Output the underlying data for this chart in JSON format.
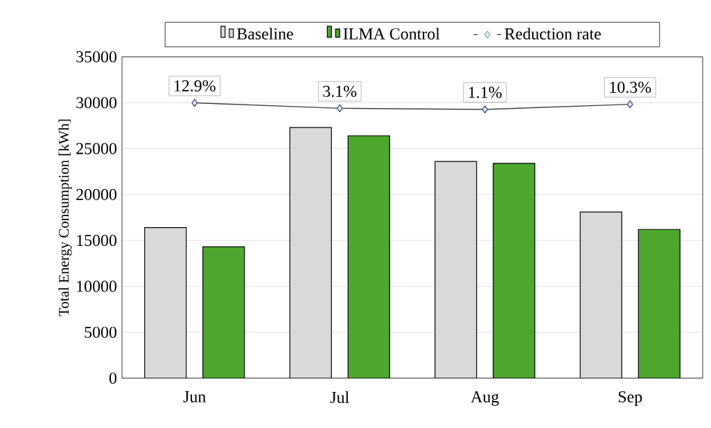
{
  "chart_data": {
    "type": "bar",
    "ylabel": "Total Energy Consumption [kWh]",
    "categories": [
      "Jun",
      "Jul",
      "Aug",
      "Sep"
    ],
    "series": [
      {
        "name": "Baseline",
        "color": "#d9d9d9",
        "values": [
          16400,
          27300,
          23600,
          18100
        ]
      },
      {
        "name": "ILMA Control",
        "color": "#4ea72e",
        "values": [
          14300,
          26400,
          23400,
          16200
        ]
      },
      {
        "name": "Reduction rate",
        "type": "line",
        "axis": "y2",
        "color": "#404040",
        "marker": "diamond",
        "values": [
          12.9,
          3.1,
          1.1,
          10.3
        ],
        "value_labels": [
          "12.9%",
          "3.1%",
          "1.1%",
          "10.3%"
        ]
      }
    ],
    "ylim": [
      0,
      35000
    ],
    "yticks": [
      0,
      5000,
      10000,
      15000,
      20000,
      25000,
      30000,
      35000
    ],
    "y2lim": [
      -485,
      96.3
    ],
    "grid": "y",
    "legend": "top"
  }
}
